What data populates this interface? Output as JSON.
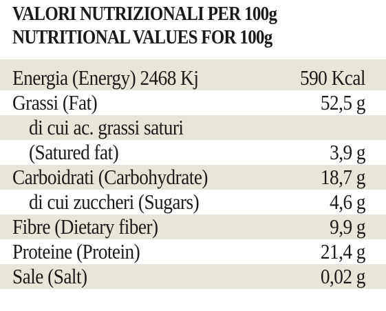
{
  "header": {
    "line1": "VALORI NUTRIZIONALI PER 100g",
    "line2": "NUTRITIONAL VALUES FOR 100g"
  },
  "rows": [
    {
      "label": "Energia (Energy) 2468 Kj",
      "value": "590 Kcal"
    },
    {
      "label": "Grassi (Fat)",
      "value": "52,5 g"
    },
    {
      "label": "di cui ac. grassi saturi",
      "value": ""
    },
    {
      "label": "(Satured fat)",
      "value": "3,9 g"
    },
    {
      "label": "Carboidrati (Carbohydrate)",
      "value": "18,7 g"
    },
    {
      "label": "di cui zuccheri (Sugars)",
      "value": "4,6 g"
    },
    {
      "label": "Fibre (Dietary fiber)",
      "value": "9,9 g"
    },
    {
      "label": "Proteine (Protein)",
      "value": "21,4 g"
    },
    {
      "label": "Sale (Salt)",
      "value": "0,02 g"
    }
  ],
  "colors": {
    "band": "#eae5d9",
    "text": "#1a1a1a"
  }
}
